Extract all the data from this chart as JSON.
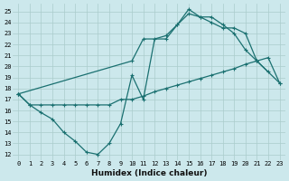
{
  "xlabel": "Humidex (Indice chaleur)",
  "background_color": "#cce8ec",
  "grid_color": "#aacccc",
  "line_color": "#1a7070",
  "xlim": [
    -0.5,
    23.5
  ],
  "ylim": [
    11.5,
    25.7
  ],
  "yticks": [
    12,
    13,
    14,
    15,
    16,
    17,
    18,
    19,
    20,
    21,
    22,
    23,
    24,
    25
  ],
  "xticks": [
    0,
    1,
    2,
    3,
    4,
    5,
    6,
    7,
    8,
    9,
    10,
    11,
    12,
    13,
    14,
    15,
    16,
    17,
    18,
    19,
    20,
    21,
    22,
    23
  ],
  "line1_x": [
    0,
    1,
    2,
    3,
    4,
    5,
    6,
    7,
    8,
    9,
    10,
    11,
    12,
    13,
    14,
    15,
    16,
    17,
    18,
    19,
    20,
    21,
    22
  ],
  "line1_y": [
    17.5,
    16.5,
    15.8,
    15.2,
    14.0,
    13.2,
    12.2,
    12.0,
    13.0,
    14.8,
    19.2,
    17.0,
    22.5,
    22.8,
    23.8,
    25.2,
    24.5,
    24.5,
    23.8,
    23.0,
    21.5,
    20.5,
    19.5
  ],
  "line2_x": [
    0,
    1,
    2,
    3,
    4,
    5,
    6,
    7,
    8,
    9,
    10,
    11,
    12,
    13,
    14,
    15,
    16,
    17,
    18,
    19,
    20,
    21,
    22,
    23
  ],
  "line2_y": [
    17.5,
    16.5,
    16.5,
    16.5,
    16.5,
    16.5,
    16.5,
    16.5,
    16.5,
    17.0,
    17.0,
    17.3,
    17.7,
    18.0,
    18.3,
    18.6,
    18.9,
    19.2,
    19.5,
    19.8,
    20.2,
    20.5,
    20.8,
    18.5
  ],
  "line3_x": [
    0,
    10,
    11,
    13,
    14,
    15,
    16,
    17,
    18,
    19,
    20,
    21,
    23
  ],
  "line3_y": [
    17.5,
    20.5,
    22.5,
    22.5,
    23.8,
    24.8,
    24.5,
    24.0,
    23.5,
    23.5,
    23.0,
    20.5,
    18.5
  ]
}
